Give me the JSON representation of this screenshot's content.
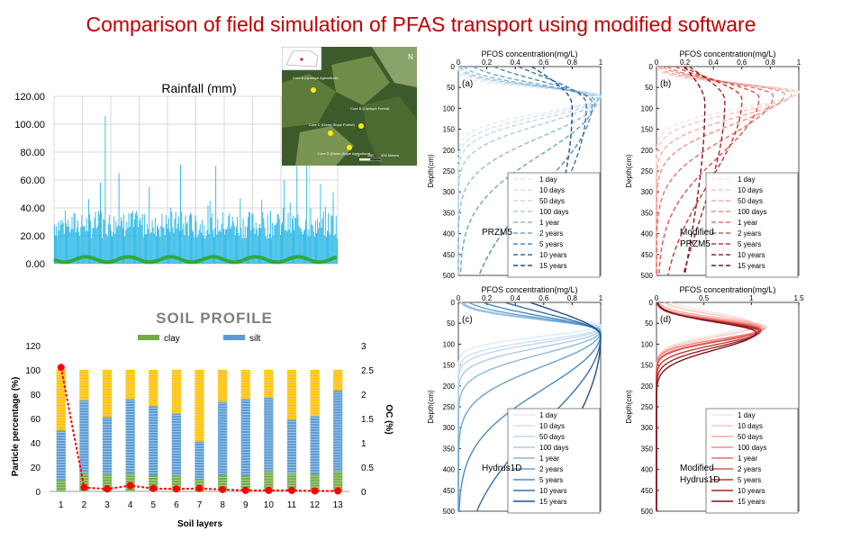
{
  "page": {
    "title": "Comparison of field simulation of PFAS transport using modified software"
  },
  "rainfall": {
    "title": "Rainfall (mm)",
    "yticks": [
      "120.00",
      "100.00",
      "80.00",
      "60.00",
      "40.00",
      "20.00",
      "0.00"
    ],
    "color": "#1fb4e6",
    "chart_data": {
      "type": "bar",
      "title": "Rainfall (mm)",
      "ylim": [
        0,
        120
      ],
      "n_days": 290,
      "baseline_range": [
        18,
        38
      ],
      "peaks": [
        {
          "day": 52,
          "value": 106
        },
        {
          "day": 47,
          "value": 58
        },
        {
          "day": 66,
          "value": 65
        },
        {
          "day": 97,
          "value": 55
        },
        {
          "day": 129,
          "value": 71
        },
        {
          "day": 165,
          "value": 70
        },
        {
          "day": 190,
          "value": 47
        },
        {
          "day": 212,
          "value": 46
        },
        {
          "day": 235,
          "value": 60
        },
        {
          "day": 248,
          "value": 88
        },
        {
          "day": 258,
          "value": 103
        },
        {
          "day": 272,
          "value": 57
        },
        {
          "day": 285,
          "value": 51
        }
      ]
    }
  },
  "map": {
    "labels": [
      "Core A (Upslope Agriculture)",
      "Core B (Upslope Forest)",
      "Core C (Down-Slope Forest)",
      "Core D (Down-Slope Agriculture)",
      "0",
      "250",
      "500 Meters"
    ],
    "north": "N"
  },
  "soil": {
    "title": "SOIL PROFILE",
    "legend": [
      "clay",
      "silt"
    ],
    "ylabel": "Particle percentage (%)",
    "y2label": "OC (%)",
    "xlabel": "Soil layers",
    "yticks": [
      "120",
      "100",
      "80",
      "60",
      "40",
      "20",
      "0"
    ],
    "y2ticks": [
      "3",
      "2.5",
      "2",
      "1.5",
      "1",
      "0.5",
      "0"
    ],
    "colors": {
      "clay": "#70ad47",
      "silt": "#5b9bd5",
      "sand": "#ffc000",
      "oc": "#ff0000"
    },
    "chart_data": {
      "type": "bar",
      "categories": [
        "1",
        "2",
        "3",
        "4",
        "5",
        "6",
        "7",
        "8",
        "9",
        "10",
        "11",
        "12",
        "13"
      ],
      "series": [
        {
          "name": "clay",
          "values": [
            9,
            15,
            14,
            15,
            13,
            13,
            10,
            13,
            13,
            17,
            15,
            14,
            17
          ]
        },
        {
          "name": "silt",
          "values": [
            41,
            60,
            47,
            61,
            57,
            51,
            31,
            61,
            63,
            60,
            44,
            48,
            66
          ]
        },
        {
          "name": "sand",
          "values": [
            50,
            25,
            39,
            24,
            30,
            36,
            59,
            26,
            24,
            23,
            41,
            38,
            17
          ]
        },
        {
          "name": "OC",
          "values": [
            2.55,
            0.08,
            0.05,
            0.12,
            0.06,
            0.05,
            0.06,
            0.04,
            0.02,
            0.02,
            0.02,
            0.01,
            0.01
          ]
        }
      ],
      "ylim": [
        0,
        120
      ],
      "y2lim": [
        0,
        3
      ]
    }
  },
  "profiles": [
    {
      "id": "a",
      "tag": "(a)",
      "model": [
        "PRZM5"
      ],
      "style": "dashed",
      "xmax": 1,
      "xlabel": "PFOS concentration(mg/L)",
      "ylabel": "Depth(cm)",
      "xticks": [
        "0",
        "0.2",
        "0.4",
        "0.6",
        "0.8",
        "1"
      ],
      "yticks": [
        "0",
        "50",
        "100",
        "150",
        "200",
        "250",
        "300",
        "350",
        "400",
        "450",
        "500"
      ],
      "legend": [
        "1 day",
        "10 days",
        "50 days",
        "100 days",
        "1 year",
        "2 years",
        "5 years",
        "10 years",
        "15 years"
      ],
      "palette": [
        "#deebf7",
        "#cfe2f3",
        "#c0d9ee",
        "#a9cbe6",
        "#8bb9dc",
        "#6aa3cf",
        "#4d8abf",
        "#3670a8",
        "#1f4e8c"
      ],
      "chart_data": {
        "type": "line",
        "xlim": [
          0,
          1
        ],
        "ylim": [
          0,
          500
        ],
        "curves": [
          {
            "name": "1 day",
            "peak_depth": 70,
            "width": 28,
            "peak_conc": 1.0,
            "tail": 0.0,
            "skew": 2.0
          },
          {
            "name": "10 days",
            "peak_depth": 70,
            "width": 32,
            "peak_conc": 1.0,
            "tail": 0.0,
            "skew": 2.0
          },
          {
            "name": "50 days",
            "peak_depth": 72,
            "width": 36,
            "peak_conc": 1.0,
            "tail": 0.0,
            "skew": 2.0
          },
          {
            "name": "100 days",
            "peak_depth": 74,
            "width": 40,
            "peak_conc": 0.99,
            "tail": 0.0,
            "skew": 2.2
          },
          {
            "name": "1 year",
            "peak_depth": 78,
            "width": 48,
            "peak_conc": 0.98,
            "tail": 0.0,
            "skew": 2.6
          },
          {
            "name": "2 years",
            "peak_depth": 82,
            "width": 60,
            "peak_conc": 0.96,
            "tail": 0.01,
            "skew": 3.0
          },
          {
            "name": "5 years",
            "peak_depth": 86,
            "width": 80,
            "peak_conc": 0.94,
            "tail": 0.03,
            "skew": 3.6
          },
          {
            "name": "10 years",
            "peak_depth": 90,
            "width": 110,
            "peak_conc": 0.9,
            "tail": 0.05,
            "skew": 4.0
          },
          {
            "name": "15 years",
            "peak_depth": 95,
            "width": 150,
            "peak_conc": 0.8,
            "tail": 0.07,
            "skew": 4.2
          }
        ]
      }
    },
    {
      "id": "b",
      "tag": "(b)",
      "model": [
        "Modified",
        "PRZM5"
      ],
      "style": "dashed",
      "xmax": 1,
      "xlabel": "PFOS concentration(mg/L)",
      "ylabel": "Depth(cm)",
      "xticks": [
        "0",
        "0.2",
        "0.4",
        "0.6",
        "0.8",
        "1"
      ],
      "yticks": [
        "0",
        "50",
        "100",
        "150",
        "200",
        "250",
        "300",
        "350",
        "400",
        "450",
        "500"
      ],
      "legend": [
        "1 day",
        "10 days",
        "50 days",
        "100 days",
        "1 year",
        "2 years",
        "5 years",
        "10 years",
        "15 years"
      ],
      "palette": [
        "#fde0dd",
        "#fcc5c0",
        "#f9aaa0",
        "#f38c82",
        "#e86e66",
        "#d9534f",
        "#c0392b",
        "#a1232b",
        "#7d1424"
      ],
      "chart_data": {
        "type": "line",
        "xlim": [
          0,
          1
        ],
        "ylim": [
          0,
          500
        ],
        "curves": [
          {
            "name": "1 day",
            "peak_depth": 60,
            "width": 28,
            "peak_conc": 1.0,
            "tail": 0.0,
            "skew": 2.0
          },
          {
            "name": "10 days",
            "peak_depth": 62,
            "width": 32,
            "peak_conc": 0.98,
            "tail": 0.0,
            "skew": 2.0
          },
          {
            "name": "50 days",
            "peak_depth": 64,
            "width": 36,
            "peak_conc": 0.95,
            "tail": 0.0,
            "skew": 2.2
          },
          {
            "name": "100 days",
            "peak_depth": 66,
            "width": 42,
            "peak_conc": 0.9,
            "tail": 0.0,
            "skew": 2.4
          },
          {
            "name": "1 year",
            "peak_depth": 70,
            "width": 50,
            "peak_conc": 0.82,
            "tail": 0.0,
            "skew": 2.8
          },
          {
            "name": "2 years",
            "peak_depth": 74,
            "width": 62,
            "peak_conc": 0.72,
            "tail": 0.01,
            "skew": 3.2
          },
          {
            "name": "5 years",
            "peak_depth": 78,
            "width": 78,
            "peak_conc": 0.6,
            "tail": 0.02,
            "skew": 3.6
          },
          {
            "name": "10 years",
            "peak_depth": 82,
            "width": 100,
            "peak_conc": 0.48,
            "tail": 0.04,
            "skew": 4.0
          },
          {
            "name": "15 years",
            "peak_depth": 88,
            "width": 120,
            "peak_conc": 0.34,
            "tail": 0.05,
            "skew": 4.2
          }
        ]
      }
    },
    {
      "id": "c",
      "tag": "(c)",
      "model": [
        "Hydrus1D"
      ],
      "style": "solid",
      "xmax": 1,
      "xlabel": "PFOS concentration(mg/L)",
      "ylabel": "Depth(cm)",
      "xticks": [
        "0",
        "0.2",
        "0.4",
        "0.6",
        "0.8",
        "1"
      ],
      "yticks": [
        "0",
        "50",
        "100",
        "150",
        "200",
        "250",
        "300",
        "350",
        "400",
        "450",
        "500"
      ],
      "legend": [
        "1 day",
        "10 days",
        "50 days",
        "100 days",
        "1 year",
        "2 years",
        "5 years",
        "10 years",
        "15 years"
      ],
      "palette": [
        "#deebf7",
        "#cfe2f3",
        "#c0d9ee",
        "#a9cbe6",
        "#8bb9dc",
        "#6aa3cf",
        "#4d8abf",
        "#3670a8",
        "#1f4e8c"
      ],
      "chart_data": {
        "type": "line",
        "xlim": [
          0,
          1
        ],
        "ylim": [
          0,
          500
        ],
        "curves": [
          {
            "name": "1 day",
            "peak_depth": 55,
            "width": 30,
            "peak_conc": 1.0,
            "tail": 0.0,
            "skew": 1.2
          },
          {
            "name": "10 days",
            "peak_depth": 60,
            "width": 32,
            "peak_conc": 1.0,
            "tail": 0.0,
            "skew": 1.3
          },
          {
            "name": "50 days",
            "peak_depth": 62,
            "width": 34,
            "peak_conc": 1.0,
            "tail": 0.0,
            "skew": 1.4
          },
          {
            "name": "100 days",
            "peak_depth": 65,
            "width": 36,
            "peak_conc": 1.0,
            "tail": 0.0,
            "skew": 1.6
          },
          {
            "name": "1 year",
            "peak_depth": 68,
            "width": 40,
            "peak_conc": 1.0,
            "tail": 0.0,
            "skew": 1.9
          },
          {
            "name": "2 years",
            "peak_depth": 70,
            "width": 48,
            "peak_conc": 1.0,
            "tail": 0.0,
            "skew": 2.4
          },
          {
            "name": "5 years",
            "peak_depth": 74,
            "width": 62,
            "peak_conc": 1.0,
            "tail": 0.0,
            "skew": 3.0
          },
          {
            "name": "10 years",
            "peak_depth": 78,
            "width": 82,
            "peak_conc": 1.0,
            "tail": 0.0,
            "skew": 3.6
          },
          {
            "name": "15 years",
            "peak_depth": 82,
            "width": 110,
            "peak_conc": 1.0,
            "tail": 0.0,
            "skew": 4.2
          }
        ]
      }
    },
    {
      "id": "d",
      "tag": "(d)",
      "model": [
        "Modified",
        "Hydrus1D"
      ],
      "style": "solid",
      "xmax": 1.5,
      "xlabel": "PFOS concentration(mg/L)",
      "ylabel": "Depth(cm)",
      "xticks": [
        "0",
        "0.5",
        "1",
        "1.5"
      ],
      "yticks": [
        "0",
        "50",
        "100",
        "150",
        "200",
        "250",
        "300",
        "350",
        "400",
        "450",
        "500"
      ],
      "legend": [
        "1 day",
        "10 days",
        "50 days",
        "100 days",
        "1 year",
        "2 years",
        "5 years",
        "10 years",
        "15 years"
      ],
      "palette": [
        "#fde0dd",
        "#fcc5c0",
        "#f9aaa0",
        "#f38c82",
        "#e86e66",
        "#d9534f",
        "#c0392b",
        "#a1232b",
        "#7d1424"
      ],
      "chart_data": {
        "type": "line",
        "xlim": [
          0,
          1.5
        ],
        "ylim": [
          0,
          500
        ],
        "curves": [
          {
            "name": "1 day",
            "peak_depth": 50,
            "width": 40,
            "peak_conc": 1.0,
            "tail": 0.0,
            "skew": 1.0
          },
          {
            "name": "10 days",
            "peak_depth": 55,
            "width": 38,
            "peak_conc": 1.05,
            "tail": 0.0,
            "skew": 1.0
          },
          {
            "name": "50 days",
            "peak_depth": 60,
            "width": 34,
            "peak_conc": 1.15,
            "tail": 0.0,
            "skew": 1.1
          },
          {
            "name": "100 days",
            "peak_depth": 62,
            "width": 32,
            "peak_conc": 1.12,
            "tail": 0.0,
            "skew": 1.1
          },
          {
            "name": "1 year",
            "peak_depth": 64,
            "width": 32,
            "peak_conc": 1.1,
            "tail": 0.0,
            "skew": 1.2
          },
          {
            "name": "2 years",
            "peak_depth": 66,
            "width": 32,
            "peak_conc": 1.1,
            "tail": 0.0,
            "skew": 1.2
          },
          {
            "name": "5 years",
            "peak_depth": 68,
            "width": 34,
            "peak_conc": 1.1,
            "tail": 0.0,
            "skew": 1.3
          },
          {
            "name": "10 years",
            "peak_depth": 70,
            "width": 36,
            "peak_conc": 1.08,
            "tail": 0.0,
            "skew": 1.4
          },
          {
            "name": "15 years",
            "peak_depth": 72,
            "width": 38,
            "peak_conc": 1.05,
            "tail": 0.0,
            "skew": 1.5
          }
        ]
      }
    }
  ]
}
